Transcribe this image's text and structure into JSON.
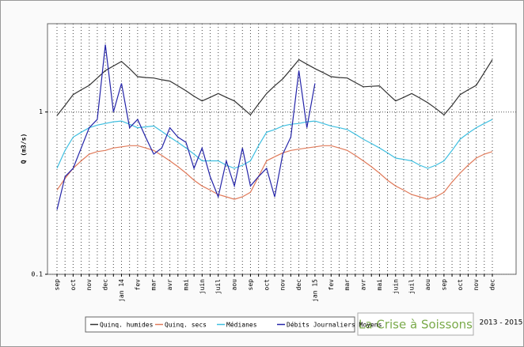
{
  "chart_data": {
    "type": "line",
    "y_label": "Q (m3/s)",
    "y_scale": "log",
    "ylim": [
      0.1,
      3.5
    ],
    "yticks": [
      0.1,
      1
    ],
    "grid": true,
    "categories": [
      "sep",
      null,
      "oct",
      null,
      "nov",
      null,
      "dec",
      null,
      "jan 14",
      null,
      "fev",
      null,
      "mar",
      null,
      "avr",
      null,
      "mai",
      null,
      "juin",
      null,
      "juil",
      null,
      "aou",
      null,
      "sep",
      null,
      "oct",
      null,
      "nov",
      null,
      "dec",
      null,
      "jan 15",
      null,
      "fev",
      null,
      "mar",
      null,
      "avr",
      null,
      "mai",
      null,
      "juin",
      null,
      "juil",
      null,
      "aou",
      null,
      "sep",
      null,
      "oct",
      null,
      "nov",
      null,
      "dec"
    ],
    "series": [
      {
        "name": "Quinq. humides",
        "color": "#333333",
        "values": [
          0.95,
          1.1,
          1.28,
          1.37,
          1.46,
          1.62,
          1.8,
          1.92,
          2.05,
          1.85,
          1.65,
          1.63,
          1.62,
          1.58,
          1.55,
          1.45,
          1.35,
          1.25,
          1.17,
          1.23,
          1.3,
          1.23,
          1.17,
          1.06,
          0.96,
          1.12,
          1.3,
          1.45,
          1.6,
          1.83,
          2.1,
          1.97,
          1.85,
          1.75,
          1.65,
          1.63,
          1.62,
          1.52,
          1.43,
          1.44,
          1.45,
          1.3,
          1.17,
          1.23,
          1.3,
          1.22,
          1.14,
          1.05,
          0.96,
          1.1,
          1.28,
          1.37,
          1.46,
          1.75,
          2.1
        ]
      },
      {
        "name": "Quinq. secs",
        "color": "#e07a5a",
        "values": [
          0.33,
          0.39,
          0.45,
          0.5,
          0.55,
          0.57,
          0.58,
          0.6,
          0.61,
          0.62,
          0.62,
          0.6,
          0.58,
          0.54,
          0.5,
          0.46,
          0.42,
          0.38,
          0.35,
          0.33,
          0.31,
          0.3,
          0.29,
          0.3,
          0.32,
          0.4,
          0.5,
          0.53,
          0.56,
          0.58,
          0.59,
          0.6,
          0.61,
          0.62,
          0.62,
          0.6,
          0.58,
          0.54,
          0.5,
          0.46,
          0.42,
          0.38,
          0.35,
          0.33,
          0.31,
          0.3,
          0.29,
          0.3,
          0.32,
          0.37,
          0.42,
          0.47,
          0.52,
          0.55,
          0.57
        ]
      },
      {
        "name": "Médianes",
        "color": "#3fbfe0",
        "values": [
          0.45,
          0.58,
          0.7,
          0.75,
          0.8,
          0.83,
          0.85,
          0.87,
          0.88,
          0.84,
          0.8,
          0.81,
          0.82,
          0.76,
          0.7,
          0.65,
          0.6,
          0.55,
          0.5,
          0.5,
          0.5,
          0.47,
          0.45,
          0.47,
          0.5,
          0.62,
          0.75,
          0.78,
          0.82,
          0.84,
          0.85,
          0.87,
          0.88,
          0.85,
          0.82,
          0.8,
          0.78,
          0.73,
          0.68,
          0.64,
          0.6,
          0.56,
          0.52,
          0.51,
          0.5,
          0.47,
          0.45,
          0.47,
          0.5,
          0.58,
          0.68,
          0.74,
          0.8,
          0.85,
          0.9
        ]
      },
      {
        "name": "Débits Journaliers Moyens",
        "color": "#2424a8",
        "values": [
          0.25,
          0.4,
          0.45,
          0.6,
          0.8,
          0.9,
          2.6,
          1.0,
          1.5,
          0.8,
          0.9,
          0.7,
          0.55,
          0.6,
          0.8,
          0.7,
          0.65,
          0.45,
          0.6,
          0.4,
          0.3,
          0.5,
          0.35,
          0.6,
          0.35,
          0.4,
          0.45,
          0.3,
          0.55,
          0.7,
          1.8,
          0.8,
          1.5,
          null,
          null,
          null,
          null,
          null,
          null,
          null,
          null,
          null,
          null,
          null,
          null,
          null,
          null,
          null,
          null,
          null,
          null,
          null,
          null,
          null,
          null
        ]
      }
    ],
    "brand": "La Crise à Soissons",
    "period": "2013 - 2015"
  }
}
